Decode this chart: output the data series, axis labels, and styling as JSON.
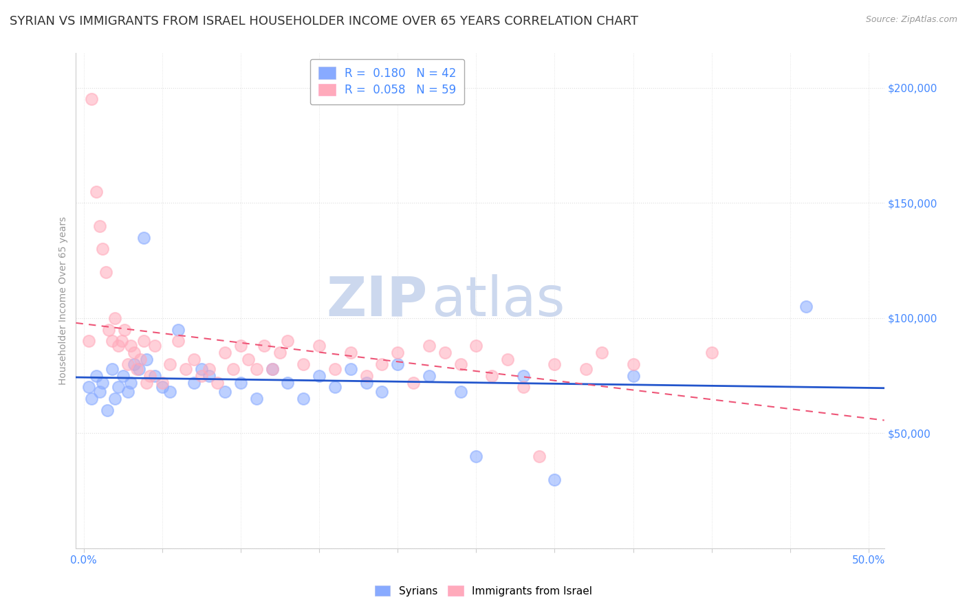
{
  "title": "SYRIAN VS IMMIGRANTS FROM ISRAEL HOUSEHOLDER INCOME OVER 65 YEARS CORRELATION CHART",
  "source": "Source: ZipAtlas.com",
  "ylabel": "Householder Income Over 65 years",
  "legend_entries": [
    {
      "label": "Syrians",
      "R": 0.18,
      "N": 42,
      "color": "#88aaff"
    },
    {
      "label": "Immigrants from Israel",
      "R": 0.058,
      "N": 59,
      "color": "#ffaabb"
    }
  ],
  "syrians_x": [
    0.3,
    0.5,
    0.8,
    1.0,
    1.2,
    1.5,
    1.8,
    2.0,
    2.2,
    2.5,
    2.8,
    3.0,
    3.2,
    3.5,
    3.8,
    4.0,
    4.5,
    5.0,
    5.5,
    6.0,
    7.0,
    7.5,
    8.0,
    9.0,
    10.0,
    11.0,
    12.0,
    13.0,
    14.0,
    15.0,
    16.0,
    17.0,
    18.0,
    19.0,
    20.0,
    22.0,
    24.0,
    25.0,
    28.0,
    30.0,
    35.0,
    46.0
  ],
  "syrians_y": [
    70000,
    65000,
    75000,
    68000,
    72000,
    60000,
    78000,
    65000,
    70000,
    75000,
    68000,
    72000,
    80000,
    78000,
    135000,
    82000,
    75000,
    70000,
    68000,
    95000,
    72000,
    78000,
    75000,
    68000,
    72000,
    65000,
    78000,
    72000,
    65000,
    75000,
    70000,
    78000,
    72000,
    68000,
    80000,
    75000,
    68000,
    40000,
    75000,
    30000,
    75000,
    105000
  ],
  "israel_x": [
    0.3,
    0.5,
    0.8,
    1.0,
    1.2,
    1.4,
    1.6,
    1.8,
    2.0,
    2.2,
    2.4,
    2.6,
    2.8,
    3.0,
    3.2,
    3.4,
    3.6,
    3.8,
    4.0,
    4.2,
    4.5,
    5.0,
    5.5,
    6.0,
    6.5,
    7.0,
    7.5,
    8.0,
    8.5,
    9.0,
    9.5,
    10.0,
    10.5,
    11.0,
    11.5,
    12.0,
    12.5,
    13.0,
    14.0,
    15.0,
    16.0,
    17.0,
    18.0,
    19.0,
    20.0,
    21.0,
    22.0,
    23.0,
    24.0,
    25.0,
    26.0,
    27.0,
    28.0,
    29.0,
    30.0,
    32.0,
    33.0,
    35.0,
    40.0
  ],
  "israel_y": [
    90000,
    195000,
    155000,
    140000,
    130000,
    120000,
    95000,
    90000,
    100000,
    88000,
    90000,
    95000,
    80000,
    88000,
    85000,
    78000,
    82000,
    90000,
    72000,
    75000,
    88000,
    72000,
    80000,
    90000,
    78000,
    82000,
    75000,
    78000,
    72000,
    85000,
    78000,
    88000,
    82000,
    78000,
    88000,
    78000,
    85000,
    90000,
    80000,
    88000,
    78000,
    85000,
    75000,
    80000,
    85000,
    72000,
    88000,
    85000,
    80000,
    88000,
    75000,
    82000,
    70000,
    40000,
    80000,
    78000,
    85000,
    80000,
    85000
  ],
  "blue_color": "#88aaff",
  "pink_color": "#ffaabb",
  "blue_line_color": "#2255cc",
  "pink_line_color": "#ee5577",
  "watermark_top": "ZIP",
  "watermark_bottom": "atlas",
  "watermark_color": "#ccd8ee",
  "background_color": "#ffffff",
  "grid_color": "#dddddd",
  "axis_label_color": "#4488ff",
  "title_color": "#333333",
  "source_color": "#999999",
  "ylim": [
    0,
    215000
  ],
  "xlim": [
    -0.5,
    51
  ],
  "yticks": [
    0,
    50000,
    100000,
    150000,
    200000
  ],
  "ytick_labels": [
    "",
    "$50,000",
    "$100,000",
    "$150,000",
    "$200,000"
  ],
  "xtick_positions": [
    0,
    5,
    10,
    15,
    20,
    25,
    30,
    35,
    40,
    45,
    50
  ],
  "title_fontsize": 13,
  "axis_fontsize": 11,
  "source_fontsize": 9
}
